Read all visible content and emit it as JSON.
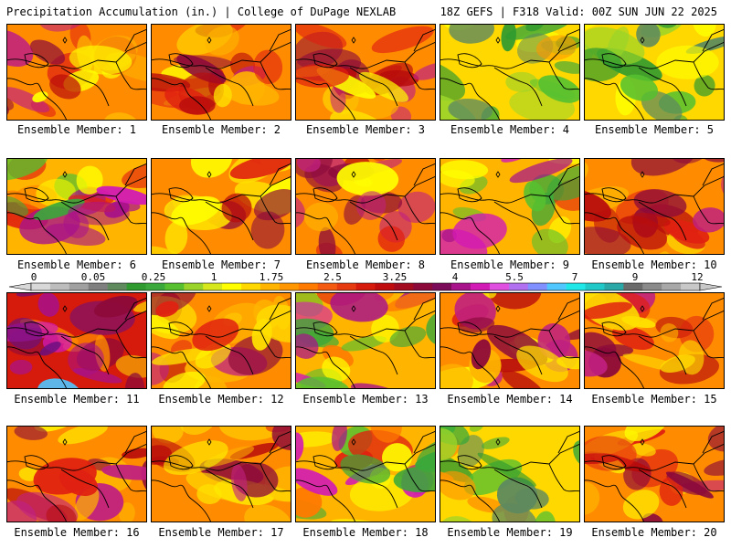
{
  "header": {
    "left": "Precipitation Accumulation (in.) | College of DuPage NEXLAB",
    "right": "18Z GEFS | F318 Valid: 00Z SUN JUN 22 2025"
  },
  "colorbar": {
    "ticks": [
      "0",
      "0.05",
      "0.25",
      "1",
      "1.75",
      "2.5",
      "3.25",
      "4",
      "5.5",
      "7",
      "9",
      "12"
    ],
    "colors": [
      "#d8d8d8",
      "#bdbdbd",
      "#a0a0a0",
      "#7f7f7f",
      "#5e8a5e",
      "#2f9a2f",
      "#3aa83a",
      "#56c030",
      "#9ad42a",
      "#d6e81c",
      "#ffff00",
      "#ffd800",
      "#ffb400",
      "#ff9600",
      "#ff7a00",
      "#f45a10",
      "#e63a10",
      "#d61a0c",
      "#bf0c0c",
      "#a30c1e",
      "#8c0a3a",
      "#7a0c5a",
      "#a8128a",
      "#d21ab4",
      "#e050e0",
      "#b070f0",
      "#8090ff",
      "#50c8ff",
      "#20e8e8",
      "#20c8c8",
      "#2aa8a8",
      "#6a6a6a",
      "#8a8a8a",
      "#a8a8a8",
      "#c8c8c8"
    ]
  },
  "panels": [
    {
      "label": "Ensemble Member: 1",
      "theme": "red"
    },
    {
      "label": "Ensemble Member: 2",
      "theme": "red"
    },
    {
      "label": "Ensemble Member: 3",
      "theme": "red"
    },
    {
      "label": "Ensemble Member: 4",
      "theme": "green"
    },
    {
      "label": "Ensemble Member: 5",
      "theme": "green"
    },
    {
      "label": "Ensemble Member: 6",
      "theme": "mix"
    },
    {
      "label": "Ensemble Member: 7",
      "theme": "red"
    },
    {
      "label": "Ensemble Member: 8",
      "theme": "red"
    },
    {
      "label": "Ensemble Member: 9",
      "theme": "mix"
    },
    {
      "label": "Ensemble Member: 10",
      "theme": "red"
    },
    {
      "label": "Ensemble Member: 11",
      "theme": "purple"
    },
    {
      "label": "Ensemble Member: 12",
      "theme": "red"
    },
    {
      "label": "Ensemble Member: 13",
      "theme": "mix"
    },
    {
      "label": "Ensemble Member: 14",
      "theme": "red"
    },
    {
      "label": "Ensemble Member: 15",
      "theme": "red"
    },
    {
      "label": "Ensemble Member: 16",
      "theme": "red"
    },
    {
      "label": "Ensemble Member: 17",
      "theme": "red"
    },
    {
      "label": "Ensemble Member: 18",
      "theme": "mix"
    },
    {
      "label": "Ensemble Member: 19",
      "theme": "green"
    },
    {
      "label": "Ensemble Member: 20",
      "theme": "red"
    }
  ]
}
